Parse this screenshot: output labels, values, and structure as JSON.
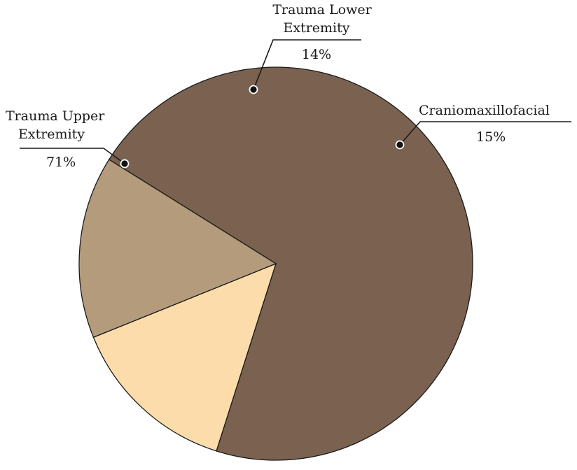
{
  "chart_data": {
    "type": "pie",
    "title": "",
    "slices": [
      {
        "label_lines": [
          "Trauma Upper",
          "Extremity"
        ],
        "value": 71,
        "value_label": "71%",
        "color": "#7a6150"
      },
      {
        "label_lines": [
          "Trauma Lower",
          "Extremity"
        ],
        "value": 14,
        "value_label": "14%",
        "color": "#fddcac"
      },
      {
        "label_lines": [
          "Craniomaxillofacial"
        ],
        "value": 15,
        "value_label": "15%",
        "color": "#b39b7b"
      }
    ],
    "legend": "callouts",
    "slice_outline": "#1a1a1a"
  }
}
